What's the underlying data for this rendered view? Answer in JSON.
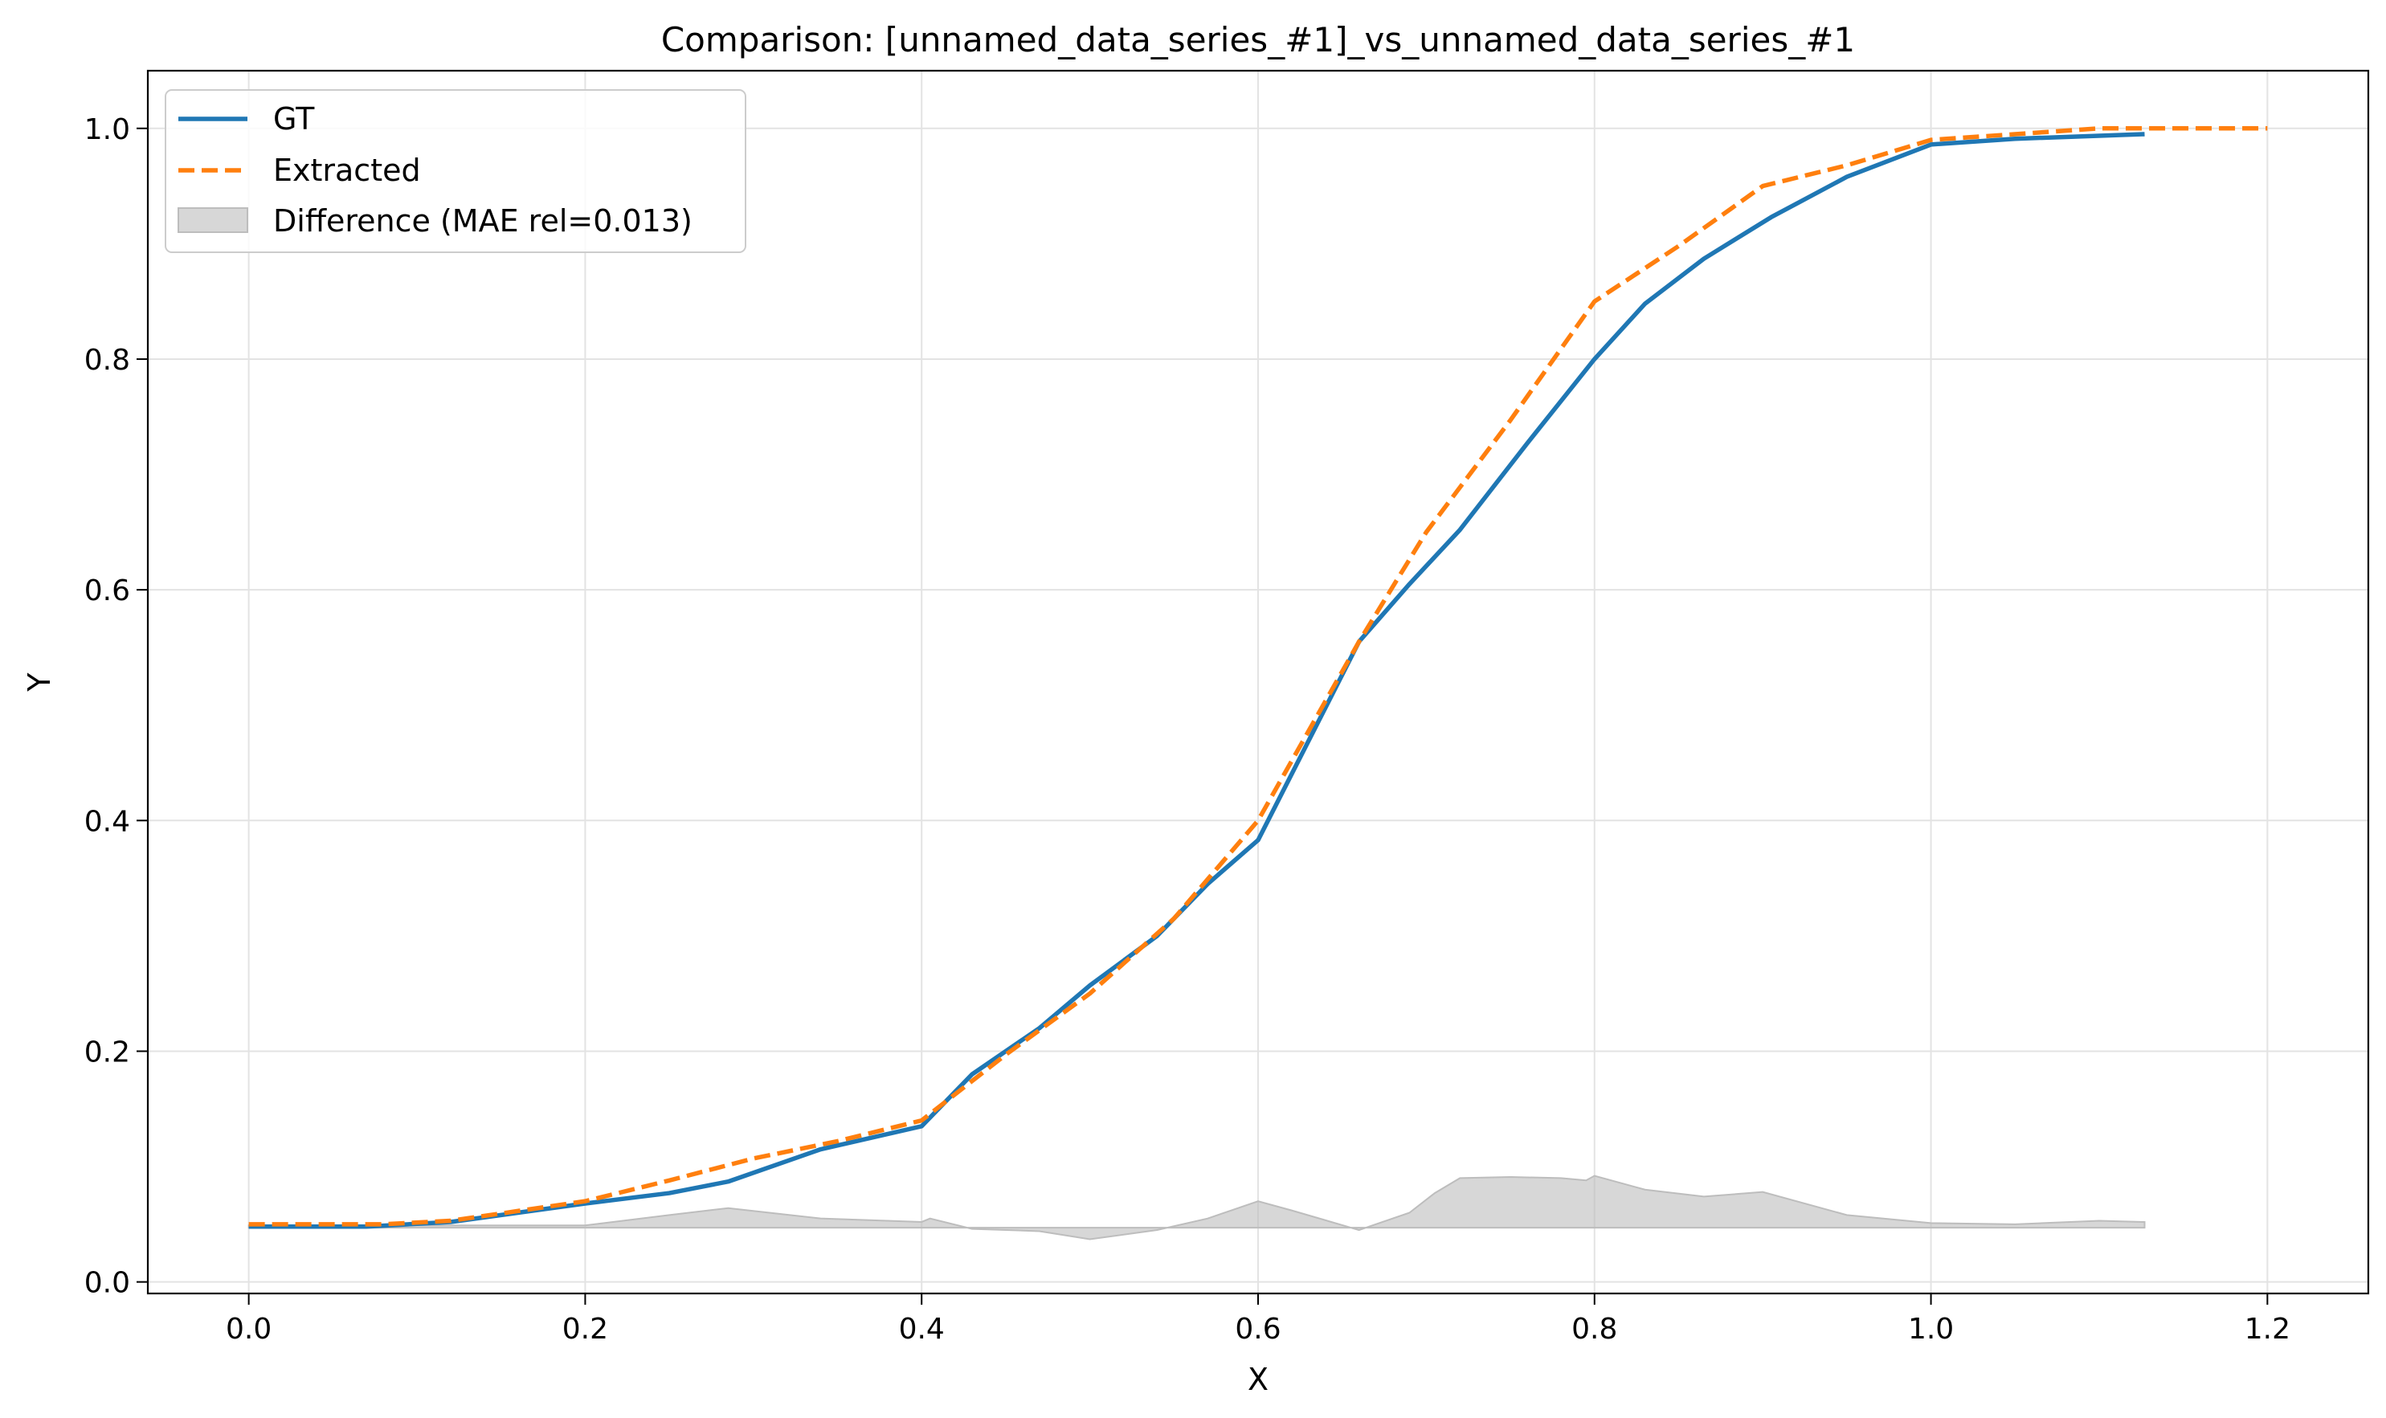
{
  "chart_data": {
    "type": "line",
    "title": "Comparison: [unnamed_data_series_#1]_vs_unnamed_data_series_#1",
    "xlabel": "X",
    "ylabel": "Y",
    "xlim": [
      -0.06,
      1.26
    ],
    "ylim": [
      -0.01,
      1.05
    ],
    "xticks": [
      "0.0",
      "0.2",
      "0.4",
      "0.6",
      "0.8",
      "1.0",
      "1.2"
    ],
    "yticks": [
      "0.0",
      "0.2",
      "0.4",
      "0.6",
      "0.8",
      "1.0"
    ],
    "grid": true,
    "legend_position": "top-left",
    "series": [
      {
        "name": "GT",
        "color": "#1f77b4",
        "style": "solid",
        "x": [
          0.0,
          0.07,
          0.12,
          0.2,
          0.25,
          0.285,
          0.34,
          0.4,
          0.43,
          0.47,
          0.5,
          0.54,
          0.57,
          0.6,
          0.66,
          0.69,
          0.72,
          0.76,
          0.8,
          0.83,
          0.865,
          0.905,
          0.95,
          1.0,
          1.05,
          1.127
        ],
        "y": [
          0.048,
          0.048,
          0.052,
          0.068,
          0.077,
          0.087,
          0.115,
          0.135,
          0.18,
          0.22,
          0.257,
          0.3,
          0.345,
          0.383,
          0.555,
          0.605,
          0.652,
          0.727,
          0.8,
          0.848,
          0.887,
          0.923,
          0.958,
          0.986,
          0.991,
          0.995
        ]
      },
      {
        "name": "Extracted",
        "color": "#ff7f0e",
        "style": "dashed",
        "x": [
          0.0,
          0.08,
          0.12,
          0.2,
          0.25,
          0.3,
          0.35,
          0.4,
          0.45,
          0.5,
          0.55,
          0.6,
          0.66,
          0.7,
          0.75,
          0.8,
          0.85,
          0.9,
          0.95,
          1.0,
          1.05,
          1.1,
          1.2
        ],
        "y": [
          0.05,
          0.05,
          0.053,
          0.07,
          0.088,
          0.107,
          0.122,
          0.14,
          0.197,
          0.25,
          0.315,
          0.4,
          0.555,
          0.65,
          0.747,
          0.85,
          0.898,
          0.95,
          0.968,
          0.99,
          0.995,
          1.0,
          1.0
        ]
      }
    ],
    "difference": {
      "name": "Difference (MAE rel=0.013)",
      "color": "#bdbdbd",
      "baseline": 0.047,
      "x": [
        0.0,
        0.2,
        0.25,
        0.285,
        0.34,
        0.4,
        0.405,
        0.43,
        0.47,
        0.5,
        0.54,
        0.57,
        0.6,
        0.62,
        0.66,
        0.69,
        0.705,
        0.72,
        0.75,
        0.78,
        0.795,
        0.8,
        0.83,
        0.865,
        0.9,
        0.95,
        1.0,
        1.05,
        1.1,
        1.127
      ],
      "y": [
        0.049,
        0.049,
        0.058,
        0.064,
        0.055,
        0.052,
        0.055,
        0.046,
        0.044,
        0.037,
        0.045,
        0.055,
        0.07,
        0.062,
        0.045,
        0.06,
        0.077,
        0.09,
        0.091,
        0.09,
        0.088,
        0.092,
        0.08,
        0.074,
        0.078,
        0.058,
        0.051,
        0.05,
        0.053,
        0.052
      ]
    }
  }
}
